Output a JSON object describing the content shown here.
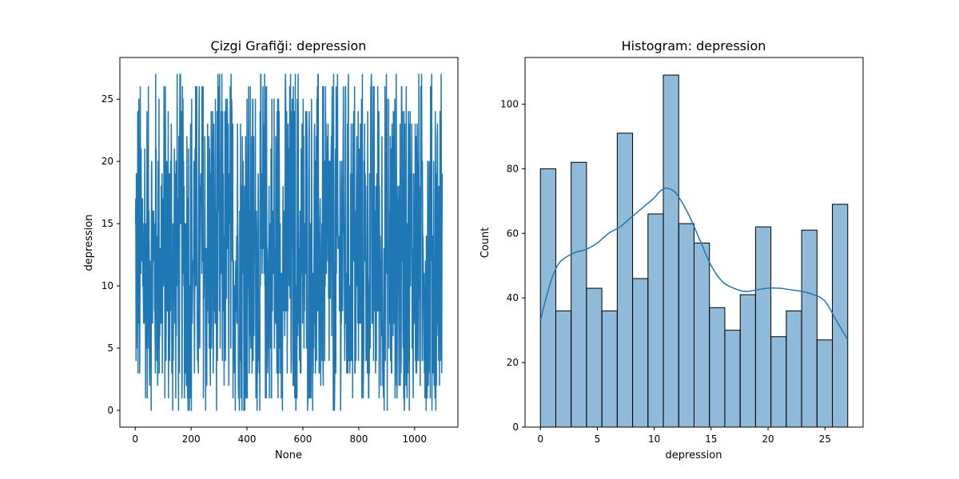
{
  "chart_data": [
    {
      "type": "line",
      "title": "Çizgi Grafiği: depression",
      "xlabel": "None",
      "ylabel": "depression",
      "xlim": [
        -55,
        1155
      ],
      "ylim": [
        -1.35,
        28.35
      ],
      "xticks": [
        0,
        200,
        400,
        600,
        800,
        1000
      ],
      "yticks": [
        0,
        5,
        10,
        15,
        20,
        25
      ],
      "n_points": 1100,
      "value_min": 0,
      "value_max": 27,
      "series_color": "#1f77b4",
      "grid": false
    },
    {
      "type": "bar",
      "title": "Histogram: depression",
      "xlabel": "depression",
      "ylabel": "Count",
      "xlim": [
        -1.35,
        28.35
      ],
      "ylim": [
        0,
        114.45
      ],
      "xticks": [
        0,
        5,
        10,
        15,
        20,
        25
      ],
      "yticks": [
        0,
        20,
        40,
        60,
        80,
        100
      ],
      "bin_edges": [
        0,
        1.35,
        2.7,
        4.05,
        5.4,
        6.75,
        8.1,
        9.45,
        10.8,
        12.15,
        13.5,
        14.85,
        16.2,
        17.55,
        18.9,
        20.25,
        21.6,
        22.95,
        24.3,
        25.65,
        27
      ],
      "counts": [
        80,
        36,
        82,
        43,
        36,
        91,
        46,
        66,
        109,
        63,
        57,
        37,
        30,
        41,
        62,
        28,
        36,
        61,
        27,
        69
      ],
      "kde": {
        "x": [
          0,
          0.5,
          1,
          1.5,
          2,
          3,
          4,
          5,
          6,
          7,
          8,
          9,
          10,
          10.5,
          11,
          11.5,
          12,
          13,
          14,
          15,
          16,
          17,
          18,
          19,
          20,
          21,
          22,
          23,
          24,
          25,
          26,
          27
        ],
        "y": [
          33,
          40,
          46,
          50,
          52,
          54,
          55,
          57,
          60,
          62,
          65,
          68,
          71,
          73,
          74,
          73.5,
          72,
          66,
          58,
          50,
          45,
          43,
          42,
          42.5,
          43,
          43,
          42.5,
          42,
          41,
          39,
          33,
          27
        ]
      },
      "bar_color": "#1f77b4",
      "bar_alpha": 0.5,
      "kde_color": "#1f77b4",
      "grid": false
    }
  ]
}
